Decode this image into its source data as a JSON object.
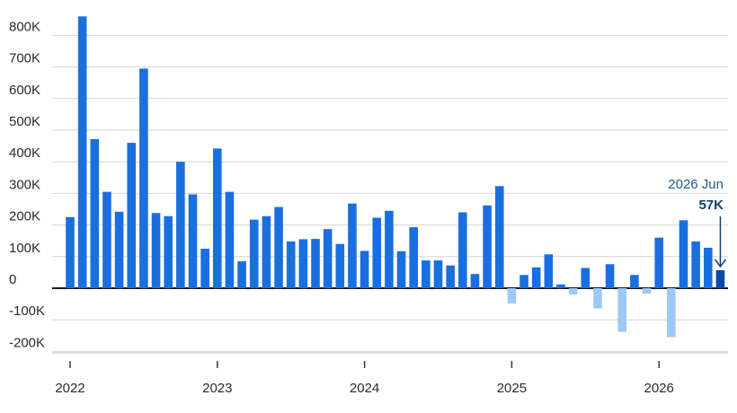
{
  "chart_data": {
    "type": "bar",
    "title": "",
    "xlabel": "",
    "ylabel": "",
    "ylim": [
      -250,
      880
    ],
    "y_unit": "thousands",
    "y_ticks": [
      -200,
      -100,
      0,
      100,
      200,
      300,
      400,
      500,
      600,
      700,
      800
    ],
    "y_tick_labels": [
      "-200K",
      "-100K",
      "0",
      "100K",
      "200K",
      "300K",
      "400K",
      "500K",
      "600K",
      "700K",
      "800K"
    ],
    "x_tick_labels": [
      "2022",
      "2023",
      "2024",
      "2025",
      "2026"
    ],
    "grid": true,
    "legend": "none",
    "colors": {
      "positive": "#1a6fdf",
      "negative": "#9ec8f5",
      "latest": "#0a49a6",
      "grid": "#d6d6d6",
      "baseline": "#1a1a1a",
      "annotation_date": "#1f5a8c",
      "annotation_value": "#0b3d73"
    },
    "series": [
      {
        "x": [
          "2022-01",
          "2022-02",
          "2022-03",
          "2022-04",
          "2022-05",
          "2022-06",
          "2022-07",
          "2022-08",
          "2022-09",
          "2022-10",
          "2022-11",
          "2022-12",
          "2023-01",
          "2023-02",
          "2023-03",
          "2023-04",
          "2023-05",
          "2023-06",
          "2023-07",
          "2023-08",
          "2023-09",
          "2023-10",
          "2023-11",
          "2023-12",
          "2024-01",
          "2024-02",
          "2024-03",
          "2024-04",
          "2024-05",
          "2024-06",
          "2024-07",
          "2024-08",
          "2024-09",
          "2024-10",
          "2024-11",
          "2024-12",
          "2025-01",
          "2025-02",
          "2025-03",
          "2025-04",
          "2025-05",
          "2025-06",
          "2025-07",
          "2025-08",
          "2025-09",
          "2025-10",
          "2025-11",
          "2025-12",
          "2026-01",
          "2026-02",
          "2026-03",
          "2026-04",
          "2026-05",
          "2026-06"
        ],
        "values": [
          225,
          860,
          472,
          305,
          242,
          460,
          695,
          238,
          228,
          400,
          297,
          125,
          442,
          305,
          85,
          217,
          228,
          257,
          148,
          155,
          156,
          187,
          140,
          268,
          118,
          223,
          245,
          117,
          193,
          88,
          88,
          72,
          240,
          45,
          262,
          323,
          -48,
          42,
          66,
          107,
          12,
          -20,
          64,
          -64,
          76,
          -138,
          42,
          -17,
          160,
          -155,
          215,
          148,
          128,
          57
        ]
      }
    ],
    "annotation": {
      "label": "2026 Jun",
      "value_label": "57K",
      "x": "2026-06",
      "value": 57
    }
  }
}
